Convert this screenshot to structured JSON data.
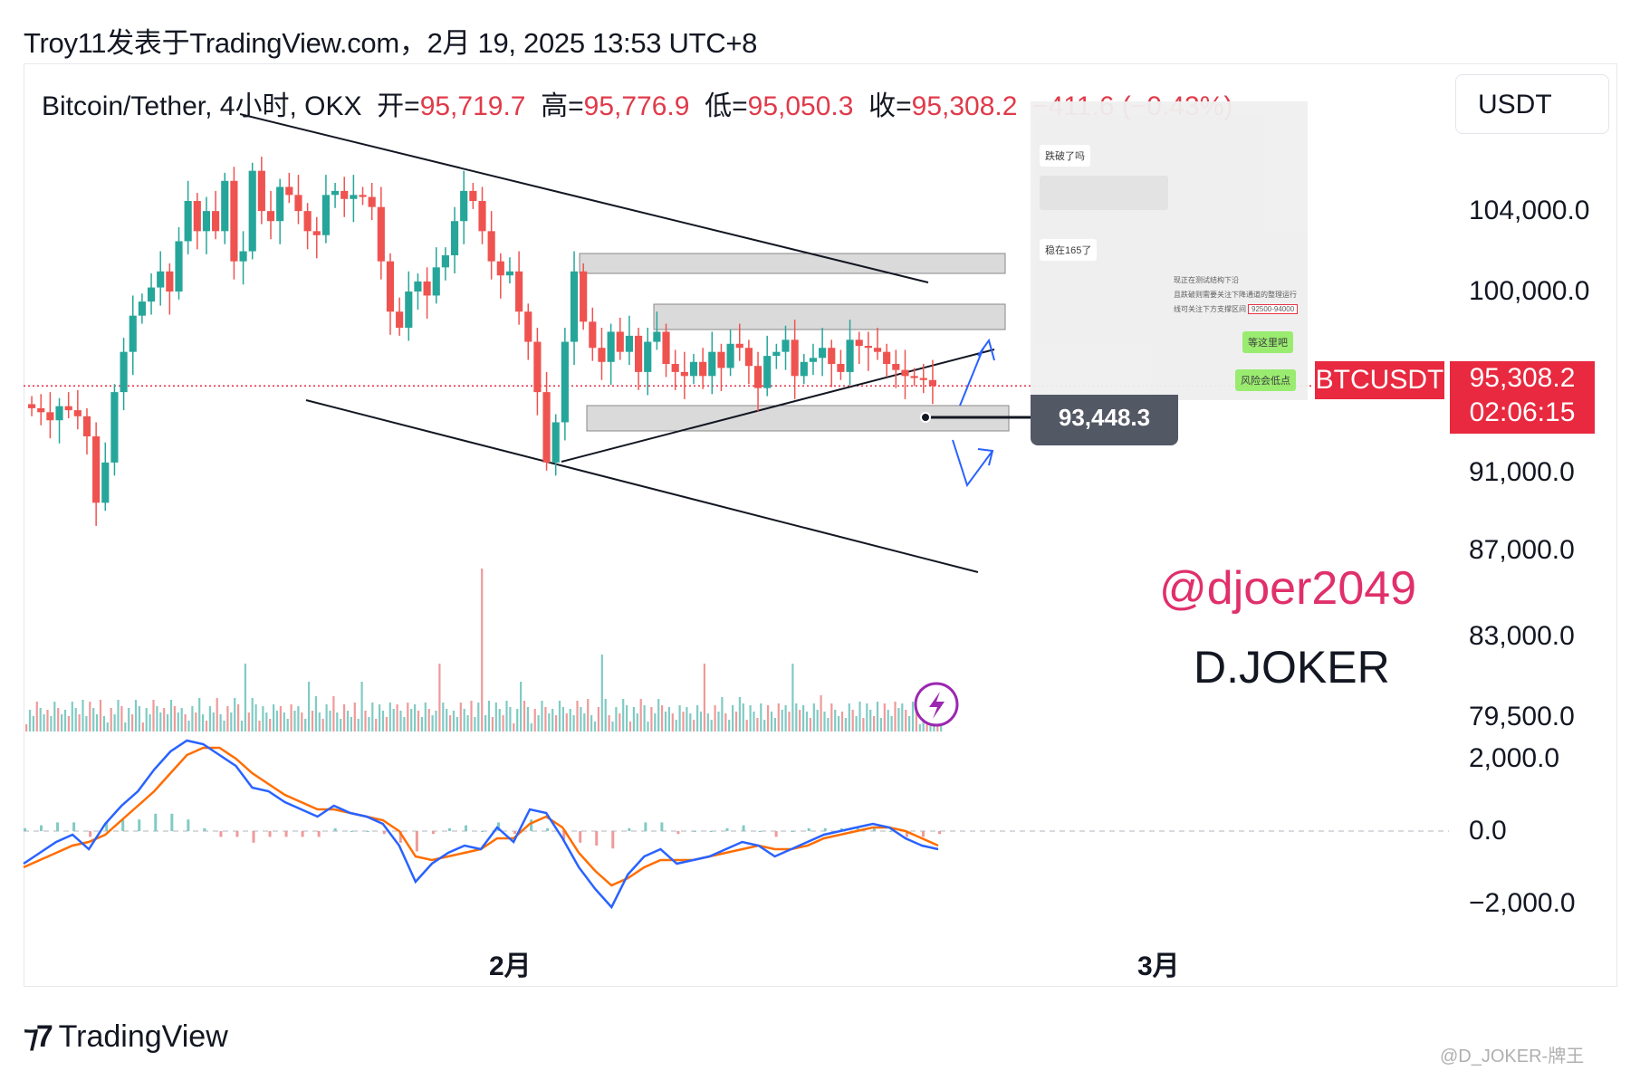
{
  "header": {
    "text": "Troy11发表于TradingView.com，2月 19, 2025 13:53 UTC+8"
  },
  "legend": {
    "symbol": "Bitcoin/Tether, 4小时, OKX",
    "open_label": "开=",
    "open": "95,719.7",
    "high_label": "高=",
    "high": "95,776.9",
    "low_label": "低=",
    "low": "95,050.3",
    "close_label": "收=",
    "close": "95,308.2",
    "change": "−411.6 (−0.43%)"
  },
  "currency": "USDT",
  "price_axis": {
    "ticks": [
      {
        "label": "104,000.0",
        "value": 104000
      },
      {
        "label": "100,000.0",
        "value": 100000
      },
      {
        "label": "91,000.0",
        "value": 91000
      },
      {
        "label": "87,000.0",
        "value": 87000
      },
      {
        "label": "83,000.0",
        "value": 83000
      },
      {
        "label": "79,500.0",
        "value": 79500
      }
    ]
  },
  "macd_axis": {
    "ticks": [
      {
        "label": "2,000.0",
        "value": 2000
      },
      {
        "label": "0.0",
        "value": 0
      },
      {
        "label": "−2,000.0",
        "value": -2000
      }
    ]
  },
  "time_axis": {
    "ticks": [
      {
        "label": "2月"
      },
      {
        "label": "3月"
      }
    ]
  },
  "last_price": {
    "symbol": "BTCUSDT",
    "price": "95,308.2",
    "countdown": "02:06:15"
  },
  "cursor_price": "93,448.3",
  "watermark": {
    "handle": "@djoer2049",
    "name": "D.JOKER"
  },
  "chat_screenshot": {
    "msg1": "跌破了吗",
    "msg2": "稳在165了",
    "lines": [
      "现正在测试结构下沿",
      "且跌破则需要关注下降通道的整理运行",
      "线可关注下方支撑区间"
    ],
    "range": "92500-94000",
    "reply1": "等这里吧",
    "reply2": "风险会低点"
  },
  "footer": {
    "brand": "TradingView",
    "corner": "@D_JOKER-牌王"
  },
  "colors": {
    "up": "#26a69a",
    "down": "#ef5350",
    "macd": "#2962ff",
    "signal": "#ff6d00",
    "accent": "#e8293f"
  },
  "chart_data": {
    "type": "candlestick",
    "symbol": "Bitcoin/Tether",
    "interval": "4小时",
    "exchange": "OKX",
    "ylim": [
      77000,
      107000
    ],
    "last": 95308.2,
    "cursor": 93448.3,
    "candles_close": [
      94200,
      94000,
      93600,
      94300,
      94100,
      93800,
      92800,
      89500,
      91500,
      95000,
      97000,
      98800,
      99500,
      100200,
      101000,
      100000,
      102500,
      104500,
      103000,
      104000,
      103000,
      105500,
      101500,
      102000,
      106000,
      104000,
      103500,
      105200,
      104800,
      104000,
      103000,
      102800,
      104800,
      105000,
      104600,
      104800,
      104700,
      104200,
      101500,
      99000,
      98200,
      100000,
      100500,
      99800,
      101200,
      101800,
      103500,
      105000,
      104500,
      103000,
      101500,
      100800,
      101000,
      99000,
      97500,
      95000,
      91500,
      93500,
      97500,
      101000,
      98500,
      97200,
      96500,
      98000,
      97000,
      97800,
      96000,
      97500,
      98000,
      96400,
      96000,
      95800,
      96500,
      95800,
      97000,
      96200,
      97400,
      97200,
      96300,
      95200,
      96800,
      97000,
      97600,
      95800,
      96500,
      96700,
      97200,
      96400,
      96000,
      97600,
      97300,
      97200,
      97000,
      96400,
      96100,
      95800,
      95700,
      95600,
      95308
    ],
    "volume_note": "volume histogram below price",
    "macd": {
      "macd_line": [
        -900,
        -600,
        -300,
        -100,
        -500,
        200,
        700,
        1100,
        1700,
        2200,
        2500,
        2400,
        2100,
        1800,
        1200,
        1100,
        800,
        600,
        400,
        700,
        500,
        400,
        200,
        -400,
        -1400,
        -900,
        -600,
        -400,
        -500,
        100,
        -300,
        600,
        500,
        -200,
        -1000,
        -1600,
        -2100,
        -1200,
        -700,
        -500,
        -900,
        -800,
        -700,
        -500,
        -300,
        -400,
        -700,
        -500,
        -300,
        -100,
        0,
        100,
        200,
        100,
        -200,
        -400,
        -500
      ],
      "signal_line": [
        -1000,
        -800,
        -600,
        -400,
        -300,
        -100,
        300,
        700,
        1100,
        1600,
        2100,
        2300,
        2300,
        2000,
        1600,
        1300,
        1000,
        800,
        600,
        600,
        500,
        400,
        300,
        0,
        -700,
        -800,
        -700,
        -600,
        -500,
        -200,
        -200,
        200,
        400,
        100,
        -600,
        -1100,
        -1500,
        -1300,
        -1000,
        -800,
        -800,
        -800,
        -700,
        -600,
        -500,
        -400,
        -500,
        -500,
        -400,
        -200,
        -100,
        0,
        100,
        100,
        0,
        -200,
        -400
      ]
    }
  }
}
